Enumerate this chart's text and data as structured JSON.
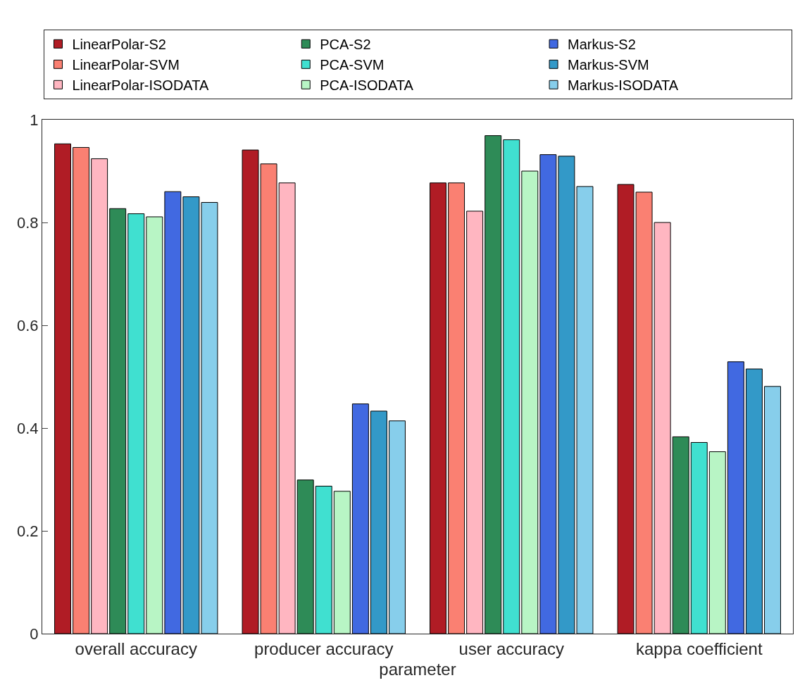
{
  "chart_data": {
    "type": "bar",
    "xlabel": "parameter",
    "categories": [
      "overall accuracy",
      "producer accuracy",
      "user accuracy",
      "kappa coefficient"
    ],
    "series": [
      {
        "name": "LinearPolar-S2",
        "color": "#b01c25",
        "values": [
          0.953,
          0.941,
          0.877,
          0.874
        ]
      },
      {
        "name": "LinearPolar-SVM",
        "color": "#fa8072",
        "values": [
          0.946,
          0.914,
          0.877,
          0.859
        ]
      },
      {
        "name": "LinearPolar-ISODATA",
        "color": "#ffb6c1",
        "values": [
          0.924,
          0.877,
          0.822,
          0.8
        ]
      },
      {
        "name": "PCA-S2",
        "color": "#2e8b57",
        "values": [
          0.827,
          0.299,
          0.969,
          0.383
        ]
      },
      {
        "name": "PCA-SVM",
        "color": "#40e0d0",
        "values": [
          0.817,
          0.287,
          0.961,
          0.372
        ]
      },
      {
        "name": "PCA-ISODATA",
        "color": "#b8f5c5",
        "values": [
          0.811,
          0.277,
          0.9,
          0.354
        ]
      },
      {
        "name": "Markus-S2",
        "color": "#4169e1",
        "values": [
          0.86,
          0.447,
          0.932,
          0.529
        ]
      },
      {
        "name": "Markus-SVM",
        "color": "#3399c8",
        "values": [
          0.85,
          0.433,
          0.929,
          0.515
        ]
      },
      {
        "name": "Markus-ISODATA",
        "color": "#87ceeb",
        "values": [
          0.839,
          0.414,
          0.87,
          0.481
        ]
      }
    ],
    "ylim": [
      0,
      1
    ],
    "yticks": [
      0,
      {
        "value": 0.2,
        "label": "0.2"
      },
      {
        "value": 0.4,
        "label": "0.4"
      },
      {
        "value": 0.6,
        "label": "0.6"
      },
      {
        "value": 0.8,
        "label": "0.8"
      },
      1
    ],
    "legend": "top"
  }
}
